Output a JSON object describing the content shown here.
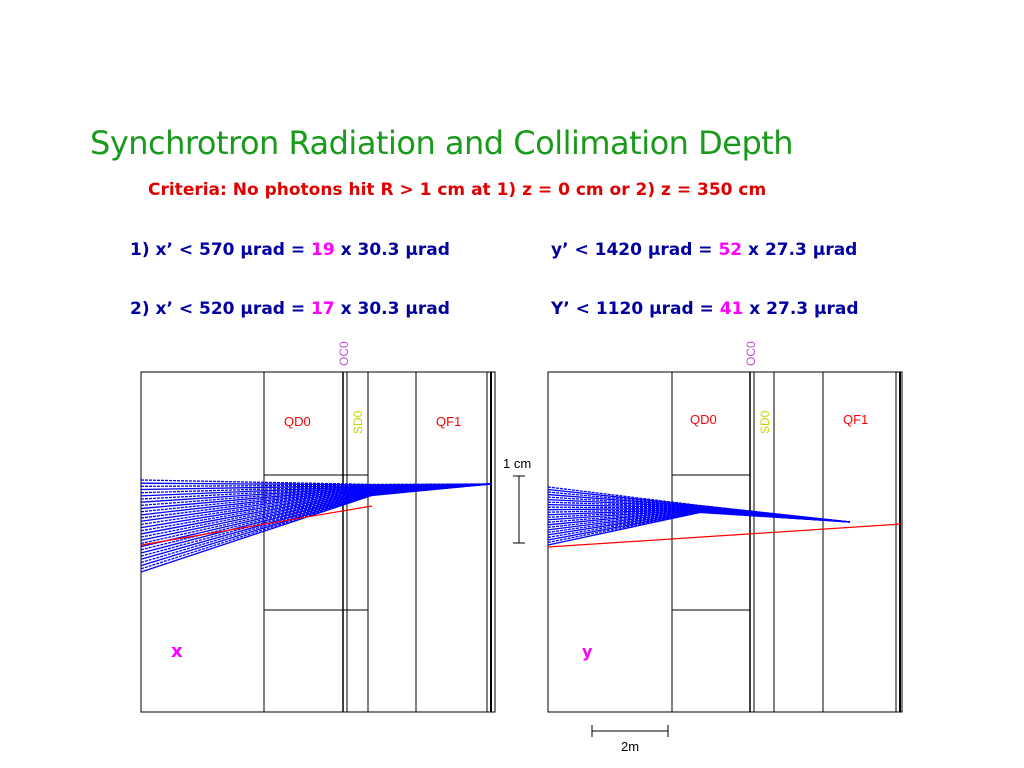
{
  "title": "Synchrotron Radiation and Collimation Depth",
  "criteria": "Criteria: No photons hit R > 1 cm at 1) z = 0 cm or 2) z = 350 cm",
  "conditions": [
    {
      "lhs_x": "1) x’ < 570 μrad = ",
      "mult_x": "19",
      "rhs_x": " x 30.3 μrad",
      "lhs_y": "y’ < 1420 μrad = ",
      "mult_y": "52",
      "rhs_y": " x 27.3 μrad"
    },
    {
      "lhs_x": "2) x’ < 520 μrad = ",
      "mult_x": "17",
      "rhs_x": " x 30.3 μrad",
      "lhs_y": "Y’ < 1120 μrad = ",
      "mult_y": "41",
      "rhs_y": " x 27.3 μrad"
    }
  ],
  "panel_x": {
    "oc_label": "OC0",
    "qd_label": "QD0",
    "sd_label": "SD0",
    "qf_label": "QF1",
    "plane_label": "x"
  },
  "panel_y": {
    "oc_label": "OC0",
    "qd_label": "QD0",
    "sd_label": "SD0",
    "qf_label": "QF1",
    "plane_label": "y"
  },
  "scale_vertical": "1 cm",
  "scale_horizontal": "2m",
  "colors": {
    "title": "#1a9a1a",
    "criteria": "#e00000",
    "text": "#0000a0",
    "highlight": "#ff00ff",
    "rays": "#0000ff",
    "limit_ray": "#ff0000",
    "labels": "#ff0000",
    "sextupole": "#c8d400",
    "collimator": "#c050d0"
  }
}
